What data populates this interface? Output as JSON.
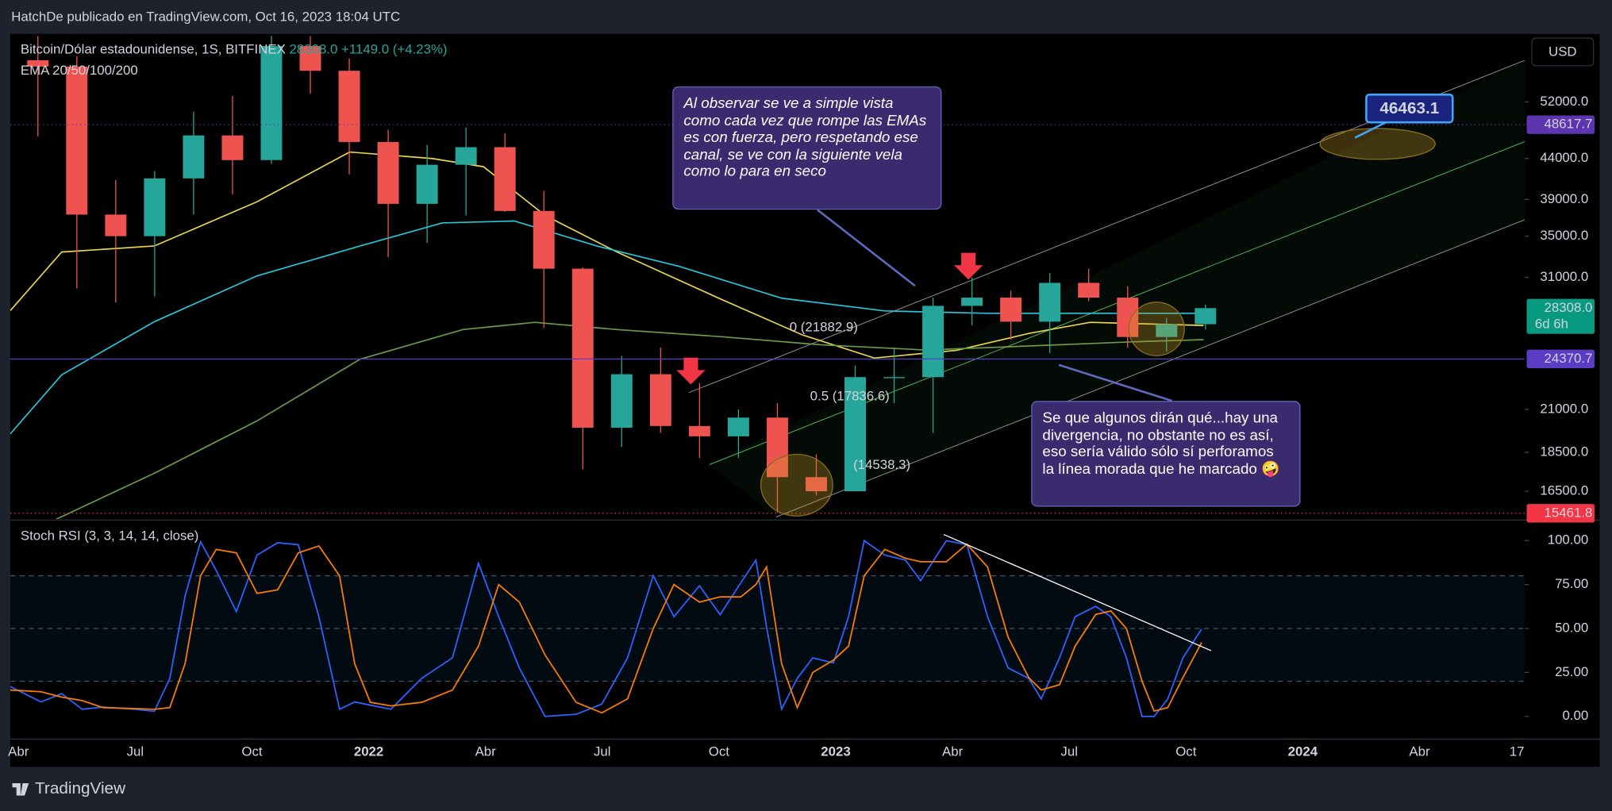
{
  "header": {
    "publisher": "HatchDe publicado en TradingView.com, Oct 16, 2023 18:04 UTC",
    "logo": "TradingView",
    "currency": "USD"
  },
  "legend": {
    "symbol": "Bitcoin/Dólar estadounidense, 1S, BITFINEX",
    "last": "28308.0",
    "change": "+1149.0 (+4.23%)",
    "indicator": "EMA 20/50/100/200"
  },
  "annotations": {
    "callout_1": "Al observar se ve a simple vista como cada vez que rompe las EMAs es con fuerza, pero respetando  ese canal, se ve con la siguiente vela como lo para en seco",
    "callout_2": "Se que algunos dirán qué...hay una divergencia,  no obstante no es así,  eso sería válido sólo sí perforamos la línea morada que he marcado 🤪",
    "target": "46463.1",
    "fib_0": "0 (21882.9)",
    "fib_05": "0.5 (17836.6)",
    "fib_low": "(14538.3)"
  },
  "chart_data": [
    {
      "type": "candlestick",
      "log_scale": true,
      "up_color": "#26a69a",
      "down_color": "#ef5350",
      "x": [
        3.5,
        4.5,
        5.5,
        6.5,
        7.5,
        8.5,
        9.5,
        10.5,
        11.5,
        12.5,
        13.5,
        14.5,
        15.5,
        16.5,
        17.5,
        18.5,
        19.5,
        20.5,
        21.5,
        22.5,
        23.5,
        24.5,
        25.5,
        26.5,
        27.5,
        28.5,
        29.5,
        30.5,
        31.5,
        32.5,
        33.5
      ],
      "open": [
        58800,
        57700,
        37300,
        35000,
        41500,
        47100,
        43800,
        61300,
        57000,
        46200,
        38500,
        43200,
        45500,
        37700,
        31800,
        19900,
        23300,
        20000,
        19400,
        20500,
        17200,
        16500,
        23100,
        23100,
        28500,
        29200,
        27200,
        30500,
        29200,
        26000,
        27000
      ],
      "high": [
        64900,
        59500,
        41300,
        42400,
        50500,
        52900,
        67000,
        69000,
        59100,
        47900,
        45800,
        48200,
        47400,
        40000,
        31900,
        24600,
        25200,
        22700,
        21000,
        21400,
        18400,
        23900,
        25200,
        29200,
        31000,
        29800,
        31400,
        31800,
        30200,
        27500,
        28600
      ],
      "low": [
        47000,
        30000,
        28800,
        29300,
        37300,
        39600,
        43300,
        53300,
        42000,
        32900,
        34300,
        37200,
        37600,
        26700,
        17600,
        18800,
        19600,
        18200,
        18200,
        15500,
        16300,
        16500,
        21400,
        19600,
        26900,
        25800,
        24800,
        28900,
        25200,
        24900,
        26600
      ],
      "close": [
        57700,
        37300,
        35000,
        41500,
        47100,
        43800,
        61300,
        57000,
        46200,
        38500,
        43200,
        45500,
        37700,
        31800,
        19900,
        23300,
        20000,
        19400,
        20500,
        17200,
        16500,
        23100,
        23100,
        28500,
        29200,
        27200,
        30500,
        29200,
        26000,
        27000,
        28308
      ],
      "ema_lines": [
        {
          "color": "#e8d44d",
          "x": [
            2.79,
            4.11,
            6.49,
            9.13,
            11.51,
            13.63,
            14.95,
            16.53,
            18.38,
            21.03,
            23.14,
            24.99,
            27.11,
            28.96,
            30.54,
            33.45
          ],
          "values": [
            28100,
            33400,
            34000,
            38740,
            44850,
            44000,
            42950,
            37220,
            33400,
            29100,
            26160,
            24440,
            25000,
            26270,
            27150,
            26900
          ]
        },
        {
          "color": "#26c6da",
          "x": [
            2.79,
            4.11,
            6.49,
            9.13,
            11.78,
            13.89,
            15.74,
            17.86,
            19.97,
            22.61,
            25.26,
            27.9,
            30.54,
            33.45
          ],
          "values": [
            19540,
            23250,
            27200,
            31130,
            34000,
            36390,
            36600,
            34000,
            32020,
            29150,
            28080,
            27880,
            27880,
            27880
          ]
        },
        {
          "color": "#6b9a4a",
          "x": [
            3.98,
            6.49,
            9.13,
            11.78,
            14.42,
            16.27,
            18.38,
            21.03,
            23.67,
            26.31,
            28.96,
            31.6,
            33.45
          ],
          "values": [
            15200,
            17400,
            20300,
            24350,
            26580,
            27150,
            26580,
            26030,
            25400,
            25020,
            25320,
            25630,
            25800
          ]
        }
      ],
      "price_labels": [
        {
          "value": 48617.7,
          "color": "#5e35b1",
          "line": "dotted"
        },
        {
          "value": 28308,
          "label": "28308.0",
          "color": "#089981",
          "countdown": "6d 6h"
        },
        {
          "value": 24370.7,
          "color": "#5b3cc4",
          "line": "solid"
        },
        {
          "value": 15461.8,
          "color": "#f23645",
          "line": "dotted"
        }
      ],
      "xlim": [
        2.79,
        41.7
      ],
      "xticks": [
        {
          "value": 3,
          "label": "Abr"
        },
        {
          "value": 6,
          "label": "Jul"
        },
        {
          "value": 9,
          "label": "Oct"
        },
        {
          "value": 12,
          "label": "2022"
        },
        {
          "value": 15,
          "label": "Abr"
        },
        {
          "value": 18,
          "label": "Jul"
        },
        {
          "value": 21,
          "label": "Oct"
        },
        {
          "value": 24,
          "label": "2023"
        },
        {
          "value": 27,
          "label": "Abr"
        },
        {
          "value": 30,
          "label": "Jul"
        },
        {
          "value": 33,
          "label": "Oct"
        },
        {
          "value": 36,
          "label": "2024"
        },
        {
          "value": 39,
          "label": "Abr"
        },
        {
          "value": 41.5,
          "label": "17"
        }
      ],
      "ylim": [
        15200,
        63150
      ],
      "yticks": [
        {
          "value": 16500,
          "label": "16500.0"
        },
        {
          "value": 18500,
          "label": "18500.0"
        },
        {
          "value": 21000,
          "label": "21000.0"
        },
        {
          "value": 31000,
          "label": "31000.0"
        },
        {
          "value": 35000,
          "label": "35000.0"
        },
        {
          "value": 39000,
          "label": "39000.0"
        },
        {
          "value": 44000,
          "label": "44000.0"
        },
        {
          "value": 52000,
          "label": "52000.0"
        }
      ]
    },
    {
      "type": "line",
      "title": "Stoch RSI (3, 3, 14, 14, close)",
      "x": [
        2.79,
        3.58,
        4.11,
        4.64,
        5.17,
        5.96,
        6.49,
        6.89,
        7.28,
        7.68,
        8.08,
        8.6,
        9.13,
        9.66,
        10.19,
        10.72,
        11.25,
        11.64,
        12.04,
        12.57,
        13.36,
        14.15,
        14.82,
        15.34,
        15.87,
        16.53,
        17.33,
        17.99,
        18.65,
        19.31,
        19.84,
        20.5,
        21.03,
        21.56,
        21.95,
        22.22,
        22.61,
        23.01,
        23.41,
        23.94,
        24.33,
        24.73,
        25.26,
        25.79,
        26.18,
        26.84,
        27.37,
        27.9,
        28.43,
        28.96,
        29.28,
        29.75,
        30.15,
        30.68,
        31.07,
        31.47,
        31.87,
        32.18,
        32.53,
        32.92,
        33.4
      ],
      "series": [
        {
          "color": "#2962ff",
          "values": [
            17.0,
            8.2,
            12.9,
            4.1,
            5.3,
            4.1,
            2.9,
            21.6,
            68.4,
            99.4,
            83.0,
            59.6,
            91.8,
            98.8,
            97.7,
            56.7,
            4.1,
            8.2,
            6.4,
            4.1,
            21.6,
            33.3,
            87.1,
            56.7,
            27.5,
            0,
            1.2,
            7.0,
            33.3,
            80.1,
            56.7,
            74.3,
            57.9,
            76.0,
            88.9,
            50.9,
            4.1,
            21.6,
            33.3,
            30.4,
            56.7,
            100,
            91.8,
            88.9,
            77.2,
            100,
            97.7,
            56.7,
            27.5,
            21.6,
            9.9,
            33.3,
            56.7,
            62.6,
            56.7,
            33.3,
            0,
            0,
            9.9,
            33.3,
            49.7
          ]
        },
        {
          "color": "#f57c00",
          "values": [
            15,
            14,
            11,
            9,
            5,
            4.5,
            4,
            5,
            30,
            80,
            95,
            93,
            70,
            72,
            93,
            97,
            80,
            30,
            8,
            6,
            8,
            15,
            40,
            75,
            65,
            35,
            8,
            2,
            10,
            50,
            75,
            65,
            68,
            68,
            75,
            85,
            30,
            5,
            25,
            32,
            40,
            80,
            95,
            90,
            88,
            88,
            98,
            85,
            45,
            22,
            15,
            18,
            40,
            58,
            60,
            50,
            20,
            3,
            5,
            22,
            42
          ]
        }
      ],
      "levels": [
        20,
        50,
        80
      ],
      "xlim": [
        2.79,
        41.7
      ],
      "ylim": [
        -12.3,
        110.5
      ],
      "yticks": [
        {
          "value": 0,
          "label": "0.00"
        },
        {
          "value": 25,
          "label": "25.00"
        },
        {
          "value": 50,
          "label": "50.00"
        },
        {
          "value": 75,
          "label": "75.00"
        },
        {
          "value": 100,
          "label": "100.00"
        }
      ]
    }
  ]
}
